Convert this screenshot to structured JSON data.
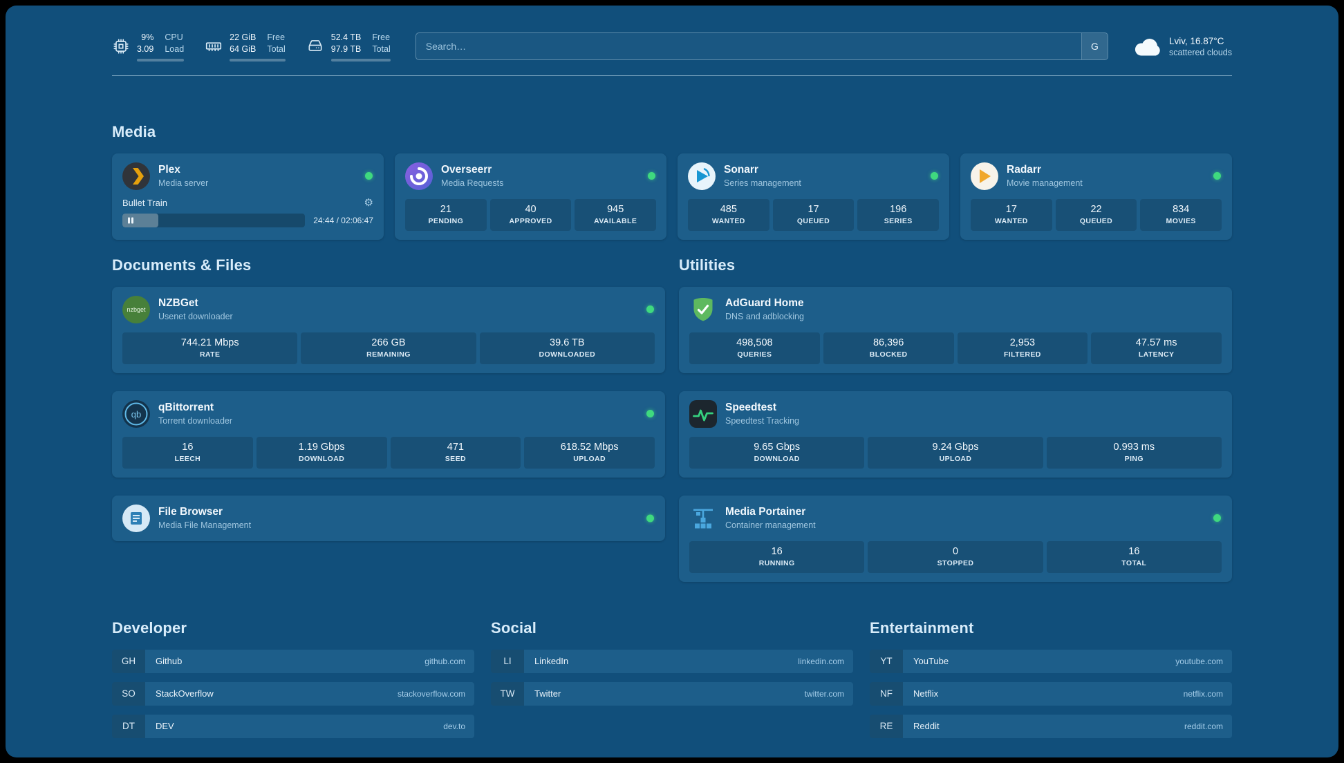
{
  "topbar": {
    "resources": [
      {
        "icon": "cpu-icon",
        "percent": 9,
        "rows": [
          {
            "value": "9%",
            "label": "CPU"
          },
          {
            "value": "3.09",
            "label": "Load"
          }
        ]
      },
      {
        "icon": "memory-icon",
        "percent": 66,
        "rows": [
          {
            "value": "22 GiB",
            "label": "Free"
          },
          {
            "value": "64 GiB",
            "label": "Total"
          }
        ]
      },
      {
        "icon": "disk-icon",
        "percent": 46,
        "rows": [
          {
            "value": "52.4 TB",
            "label": "Free"
          },
          {
            "value": "97.9 TB",
            "label": "Total"
          }
        ]
      }
    ],
    "search": {
      "placeholder": "Search…",
      "provider_button": "G"
    },
    "weather": {
      "location": "Lviv, 16.87°C",
      "condition": "scattered clouds"
    }
  },
  "sections": {
    "media": {
      "heading": "Media",
      "cards": [
        {
          "name": "Plex",
          "subtitle": "Media server",
          "icon": "plex-icon",
          "status": "online",
          "now_playing": {
            "title": "Bullet Train",
            "time_display": "24:44 / 02:06:47",
            "progress_percent": 19.5
          }
        },
        {
          "name": "Overseerr",
          "subtitle": "Media Requests",
          "icon": "overseerr-icon",
          "status": "online",
          "stats": [
            {
              "value": "21",
              "label": "PENDING"
            },
            {
              "value": "40",
              "label": "APPROVED"
            },
            {
              "value": "945",
              "label": "AVAILABLE"
            }
          ]
        },
        {
          "name": "Sonarr",
          "subtitle": "Series management",
          "icon": "sonarr-icon",
          "status": "online",
          "stats": [
            {
              "value": "485",
              "label": "WANTED"
            },
            {
              "value": "17",
              "label": "QUEUED"
            },
            {
              "value": "196",
              "label": "SERIES"
            }
          ]
        },
        {
          "name": "Radarr",
          "subtitle": "Movie management",
          "icon": "radarr-icon",
          "status": "online",
          "stats": [
            {
              "value": "17",
              "label": "WANTED"
            },
            {
              "value": "22",
              "label": "QUEUED"
            },
            {
              "value": "834",
              "label": "MOVIES"
            }
          ]
        }
      ]
    },
    "documents": {
      "heading": "Documents & Files",
      "cards": [
        {
          "name": "NZBGet",
          "subtitle": "Usenet downloader",
          "icon": "nzbget-icon",
          "status": "online",
          "stats": [
            {
              "value": "744.21 Mbps",
              "label": "RATE"
            },
            {
              "value": "266 GB",
              "label": "REMAINING"
            },
            {
              "value": "39.6 TB",
              "label": "DOWNLOADED"
            }
          ]
        },
        {
          "name": "qBittorrent",
          "subtitle": "Torrent downloader",
          "icon": "qbittorrent-icon",
          "status": "online",
          "stats": [
            {
              "value": "16",
              "label": "LEECH"
            },
            {
              "value": "1.19 Gbps",
              "label": "DOWNLOAD"
            },
            {
              "value": "471",
              "label": "SEED"
            },
            {
              "value": "618.52 Mbps",
              "label": "UPLOAD"
            }
          ]
        },
        {
          "name": "File Browser",
          "subtitle": "Media File Management",
          "icon": "filebrowser-icon",
          "status": "online"
        }
      ]
    },
    "utilities": {
      "heading": "Utilities",
      "cards": [
        {
          "name": "AdGuard Home",
          "subtitle": "DNS and adblocking",
          "icon": "adguard-icon",
          "stats": [
            {
              "value": "498,508",
              "label": "QUERIES"
            },
            {
              "value": "86,396",
              "label": "BLOCKED"
            },
            {
              "value": "2,953",
              "label": "FILTERED"
            },
            {
              "value": "47.57 ms",
              "label": "LATENCY"
            }
          ]
        },
        {
          "name": "Speedtest",
          "subtitle": "Speedtest Tracking",
          "icon": "speedtest-icon",
          "stats": [
            {
              "value": "9.65 Gbps",
              "label": "DOWNLOAD"
            },
            {
              "value": "9.24 Gbps",
              "label": "UPLOAD"
            },
            {
              "value": "0.993 ms",
              "label": "PING"
            }
          ]
        },
        {
          "name": "Media Portainer",
          "subtitle": "Container management",
          "icon": "portainer-icon",
          "status": "online",
          "stats": [
            {
              "value": "16",
              "label": "RUNNING"
            },
            {
              "value": "0",
              "label": "STOPPED"
            },
            {
              "value": "16",
              "label": "TOTAL"
            }
          ]
        }
      ]
    }
  },
  "bookmarks": [
    {
      "heading": "Developer",
      "items": [
        {
          "abbr": "GH",
          "name": "Github",
          "domain": "github.com"
        },
        {
          "abbr": "SO",
          "name": "StackOverflow",
          "domain": "stackoverflow.com"
        },
        {
          "abbr": "DT",
          "name": "DEV",
          "domain": "dev.to"
        }
      ]
    },
    {
      "heading": "Social",
      "items": [
        {
          "abbr": "LI",
          "name": "LinkedIn",
          "domain": "linkedin.com"
        },
        {
          "abbr": "TW",
          "name": "Twitter",
          "domain": "twitter.com"
        }
      ]
    },
    {
      "heading": "Entertainment",
      "items": [
        {
          "abbr": "YT",
          "name": "YouTube",
          "domain": "youtube.com"
        },
        {
          "abbr": "NF",
          "name": "Netflix",
          "domain": "netflix.com"
        },
        {
          "abbr": "RE",
          "name": "Reddit",
          "domain": "reddit.com"
        }
      ]
    }
  ],
  "colors": {
    "background": "#114F7B",
    "card": "#1D5E8A",
    "status_online": "#3FD97F"
  }
}
